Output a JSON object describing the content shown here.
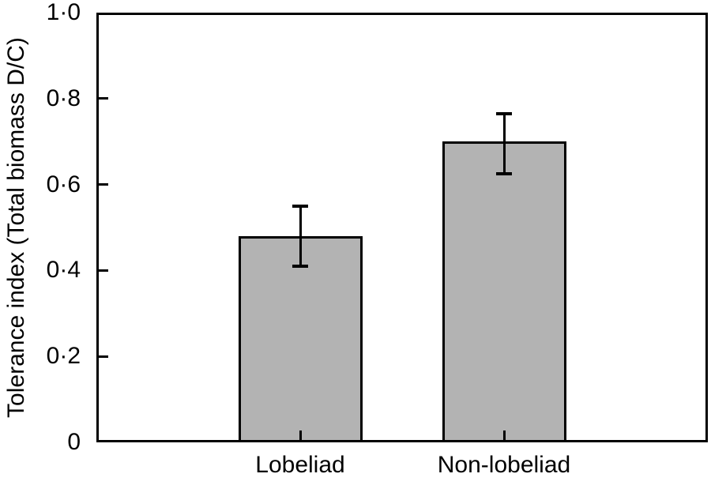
{
  "figure": {
    "background": "#ffffff",
    "text_color": "#000000",
    "axis_color": "#000000"
  },
  "chart_data": {
    "type": "bar",
    "title": "",
    "xlabel": "",
    "ylabel": "Tolerance index (Total biomass D/C)",
    "categories": [
      "Lobeliad",
      "Non-lobeliad"
    ],
    "values": [
      0.48,
      0.7
    ],
    "error_upper": [
      0.55,
      0.765
    ],
    "error_lower": [
      0.41,
      0.625
    ],
    "ylim": [
      0,
      1.0
    ],
    "yticks": [
      {
        "value": 0.0,
        "label": "0"
      },
      {
        "value": 0.2,
        "label": "0·2"
      },
      {
        "value": 0.4,
        "label": "0·4"
      },
      {
        "value": 0.6,
        "label": "0·6"
      },
      {
        "value": 0.8,
        "label": "0·8"
      },
      {
        "value": 1.0,
        "label": "1·0"
      }
    ],
    "grid": false,
    "legend": null,
    "bar_color": "#b3b3b3",
    "bar_edge_color": "#000000",
    "error_bar_color": "#000000"
  }
}
